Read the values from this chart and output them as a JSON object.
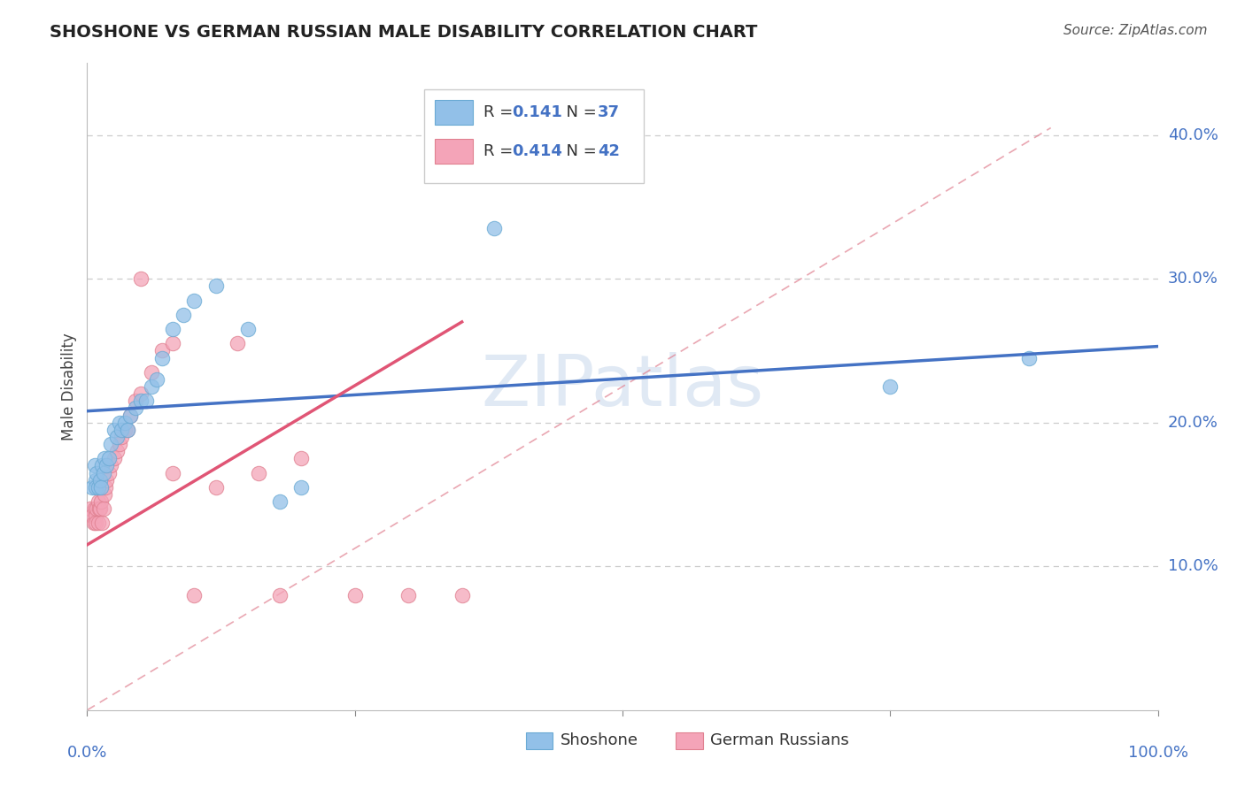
{
  "title": "SHOSHONE VS GERMAN RUSSIAN MALE DISABILITY CORRELATION CHART",
  "source": "Source: ZipAtlas.com",
  "ylabel": "Male Disability",
  "watermark": "ZIPat⁠las",
  "shoshone_R": 0.141,
  "shoshone_N": 37,
  "german_russian_R": 0.414,
  "german_russian_N": 42,
  "shoshone_color": "#92c0e8",
  "shoshone_edge_color": "#6aaad4",
  "shoshone_line_color": "#4472c4",
  "german_russian_color": "#f4a4b8",
  "german_russian_edge_color": "#e08090",
  "german_russian_line_color": "#e05575",
  "diagonal_color": "#e08090",
  "grid_color": "#cccccc",
  "shoshone_x": [
    0.005,
    0.007,
    0.008,
    0.008,
    0.009,
    0.01,
    0.012,
    0.013,
    0.014,
    0.015,
    0.016,
    0.018,
    0.02,
    0.022,
    0.025,
    0.028,
    0.03,
    0.032,
    0.035,
    0.038,
    0.04,
    0.045,
    0.05,
    0.055,
    0.06,
    0.065,
    0.07,
    0.08,
    0.09,
    0.1,
    0.12,
    0.15,
    0.18,
    0.2,
    0.38,
    0.75,
    0.88
  ],
  "shoshone_y": [
    0.155,
    0.17,
    0.16,
    0.155,
    0.165,
    0.155,
    0.16,
    0.155,
    0.17,
    0.165,
    0.175,
    0.17,
    0.175,
    0.185,
    0.195,
    0.19,
    0.2,
    0.195,
    0.2,
    0.195,
    0.205,
    0.21,
    0.215,
    0.215,
    0.225,
    0.23,
    0.245,
    0.265,
    0.275,
    0.285,
    0.295,
    0.265,
    0.145,
    0.155,
    0.335,
    0.225,
    0.245
  ],
  "german_russian_x": [
    0.003,
    0.005,
    0.006,
    0.007,
    0.008,
    0.008,
    0.009,
    0.01,
    0.01,
    0.011,
    0.012,
    0.013,
    0.014,
    0.015,
    0.016,
    0.017,
    0.018,
    0.02,
    0.022,
    0.025,
    0.028,
    0.03,
    0.032,
    0.035,
    0.038,
    0.04,
    0.045,
    0.05,
    0.06,
    0.07,
    0.08,
    0.1,
    0.12,
    0.14,
    0.16,
    0.18,
    0.2,
    0.25,
    0.3,
    0.35,
    0.05,
    0.08
  ],
  "german_russian_y": [
    0.14,
    0.135,
    0.13,
    0.14,
    0.135,
    0.13,
    0.14,
    0.13,
    0.145,
    0.14,
    0.14,
    0.145,
    0.13,
    0.14,
    0.15,
    0.155,
    0.16,
    0.165,
    0.17,
    0.175,
    0.18,
    0.185,
    0.19,
    0.195,
    0.195,
    0.205,
    0.215,
    0.22,
    0.235,
    0.25,
    0.255,
    0.08,
    0.155,
    0.255,
    0.165,
    0.08,
    0.175,
    0.08,
    0.08,
    0.08,
    0.3,
    0.165
  ],
  "shoshone_line_x0": 0.0,
  "shoshone_line_y0": 0.208,
  "shoshone_line_x1": 1.0,
  "shoshone_line_y1": 0.253,
  "german_line_x0": 0.0,
  "german_line_y0": 0.115,
  "german_line_x1": 0.35,
  "german_line_y1": 0.27,
  "xlim": [
    0.0,
    1.0
  ],
  "ylim": [
    0.0,
    0.45
  ],
  "ytick_vals": [
    0.1,
    0.2,
    0.3,
    0.4
  ],
  "ytick_labels": [
    "10.0%",
    "20.0%",
    "30.0%",
    "40.0%"
  ]
}
